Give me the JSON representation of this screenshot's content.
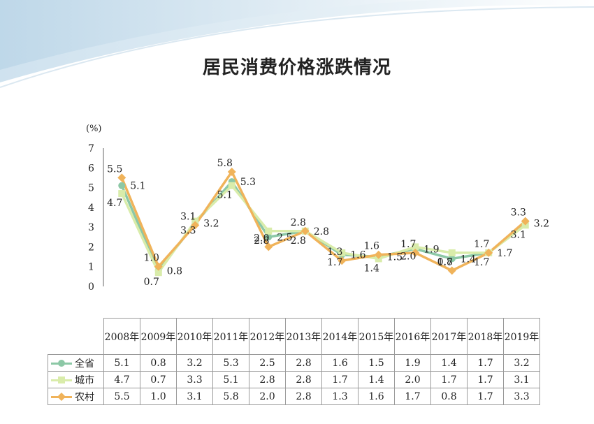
{
  "title": "居民消费价格涨跌情况",
  "chart_data": {
    "type": "line",
    "title": "居民消费价格涨跌情况",
    "ylabel": "(%)",
    "ylim": [
      0,
      7
    ],
    "yticks": [
      "0",
      "1",
      "2",
      "3",
      "4",
      "5",
      "6",
      "7"
    ],
    "categories": [
      "2008年",
      "2009年",
      "2010年",
      "2011年",
      "2012年",
      "2013年",
      "2014年",
      "2015年",
      "2016年",
      "2017年",
      "2018年",
      "2019年"
    ],
    "grid": false,
    "legend": "table-left",
    "series": [
      {
        "name": "全省",
        "color": "#8cc8a6",
        "marker": "circle",
        "values": [
          5.1,
          0.8,
          3.2,
          5.3,
          2.5,
          2.8,
          1.6,
          1.5,
          1.9,
          1.4,
          1.7,
          3.2
        ],
        "labels": [
          "5.1",
          "0.8",
          "3.2",
          "5.3",
          "2.5",
          "2.8",
          "1.6",
          "1.5",
          "1.9",
          "1.4",
          "1.7",
          "3.2"
        ]
      },
      {
        "name": "城市",
        "color": "#d9ecaa",
        "marker": "square",
        "values": [
          4.7,
          0.7,
          3.3,
          5.1,
          2.8,
          2.8,
          1.7,
          1.4,
          2.0,
          1.7,
          1.7,
          3.1
        ],
        "labels": [
          "4.7",
          "0.7",
          "3.3",
          "5.1",
          "2.8",
          "2.8",
          "1.7",
          "1.4",
          "2.0",
          "1.7",
          "1.7",
          "3.1"
        ]
      },
      {
        "name": "农村",
        "color": "#f0b35a",
        "marker": "diamond",
        "values": [
          5.5,
          1.0,
          3.1,
          5.8,
          2.0,
          2.8,
          1.3,
          1.6,
          1.7,
          0.8,
          1.7,
          3.3
        ],
        "labels": [
          "5.5",
          "1.0",
          "3.1",
          "5.8",
          "2.0",
          "2.8",
          "1.3",
          "1.6",
          "1.7",
          "0.8",
          "1.7",
          "3.3"
        ]
      }
    ]
  }
}
